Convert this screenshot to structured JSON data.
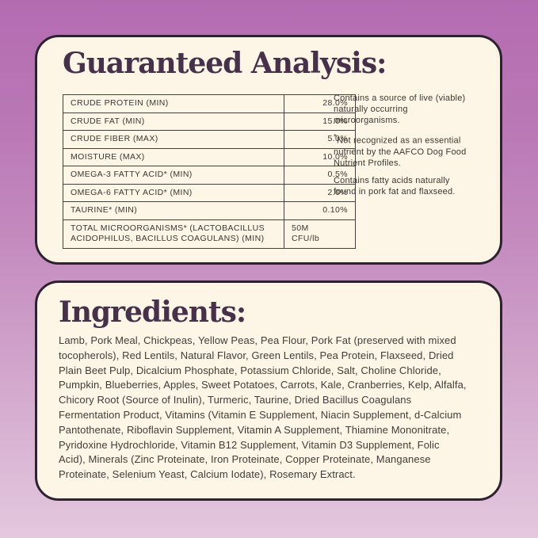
{
  "colors": {
    "background_top": "#b46cb1",
    "background_bottom": "#e3c8de",
    "card_background": "#fdf6e6",
    "card_border": "#2e2130",
    "heading_text": "#46304a",
    "body_text": "#3c3835"
  },
  "guaranteed_analysis": {
    "title": "Guaranteed Analysis:",
    "table": {
      "rows": [
        {
          "label": "CRUDE PROTEIN (MIN)",
          "value": "28.0%"
        },
        {
          "label": "CRUDE FAT (MIN)",
          "value": "15.0%"
        },
        {
          "label": "CRUDE FIBER (MAX)",
          "value": "5.0%"
        },
        {
          "label": "MOISTURE (MAX)",
          "value": "10.0%"
        },
        {
          "label": "OMEGA-3 FATTY ACID* (MIN)",
          "value": "0.5%"
        },
        {
          "label": "OMEGA-6 FATTY ACID* (MIN)",
          "value": "2.0%"
        },
        {
          "label": "TAURINE* (MIN)",
          "value": "0.10%"
        },
        {
          "label": "TOTAL MICROORGANISMS* (LACTOBACILLUS ACIDOPHILUS, BACILLUS COAGULANS) (MIN)",
          "value": "50M CFU/lb",
          "value_lines": [
            "50M",
            "CFU/lb"
          ]
        }
      ]
    },
    "notes": [
      "Contains a source of live (viable) naturally occurring microorganisms.",
      "*Not recognized as an essential nutrient by the AAFCO Dog Food Nutrient Profiles.",
      "Contains fatty acids naturally found in pork fat and flaxseed."
    ]
  },
  "ingredients": {
    "title": "Ingredients:",
    "text": "Lamb, Pork Meal, Chickpeas, Yellow Peas, Pea Flour, Pork Fat (preserved with mixed tocopherols), Red Lentils, Natural Flavor, Green Lentils, Pea Protein, Flaxseed, Dried Plain Beet Pulp, Dicalcium Phosphate, Potassium Chloride, Salt, Choline Chloride, Pumpkin, Blueberries, Apples, Sweet Potatoes, Carrots, Kale, Cranberries, Kelp, Alfalfa, Chicory Root (Source of Inulin), Turmeric, Taurine, Dried Bacillus Coagulans Fermentation Product, Vitamins (Vitamin E Supplement, Niacin Supplement, d-Calcium Pantothenate, Riboflavin Supplement, Vitamin A Supplement, Thiamine Mononitrate, Pyridoxine Hydrochloride, Vitamin B12 Supplement, Vitamin D3 Supplement, Folic Acid), Minerals (Zinc Proteinate, Iron Proteinate, Copper Proteinate, Manganese Proteinate, Selenium Yeast, Calcium Iodate), Rosemary Extract."
  }
}
